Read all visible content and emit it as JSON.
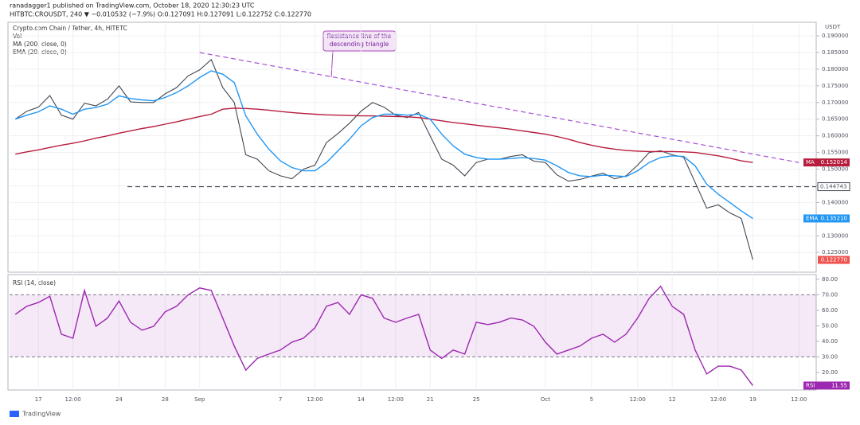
{
  "header": {
    "publisher": "ranadagger1 published on TradingView.com, October 18, 2020 12:30:23 UTC",
    "quote": "HITBTC:CROUSDT, 240 ▼ −0.010532 (−7.9%) O:0.127091 H:0.127091 L:0.122752 C:0.122770"
  },
  "footer": "TradingView",
  "chart_data": [
    {
      "type": "line",
      "y_label": "USDT",
      "volume_label": "Vol",
      "annotation": [
        "Resistance line of the",
        "descending triangle"
      ],
      "categories": [
        null,
        null,
        "17",
        null,
        null,
        "12:00",
        null,
        null,
        null,
        "24",
        null,
        null,
        null,
        "28",
        null,
        null,
        "Sep",
        null,
        null,
        null,
        null,
        null,
        null,
        "7",
        null,
        null,
        "12:00",
        null,
        null,
        null,
        "14",
        null,
        null,
        "12:00",
        null,
        null,
        "21",
        null,
        null,
        null,
        "25",
        null,
        null,
        null,
        null,
        null,
        "Oct",
        null,
        null,
        null,
        "5",
        null,
        null,
        null,
        "12:00",
        null,
        null,
        "12",
        null,
        null,
        null,
        "12:00",
        null,
        null,
        "19",
        null,
        null,
        null,
        "12:00",
        null
      ],
      "ylim": [
        0.1198,
        0.1936
      ],
      "yticks": [
        {
          "value": 0.125,
          "label": "0.125000"
        },
        {
          "value": 0.13,
          "label": "0.130000"
        },
        {
          "value": 0.135,
          "label": "0.135000"
        },
        {
          "value": 0.14,
          "label": "0.140000"
        },
        {
          "value": 0.145,
          "label": "0.145000"
        },
        {
          "value": 0.15,
          "label": "0.150000"
        },
        {
          "value": 0.155,
          "label": "0.155000"
        },
        {
          "value": 0.16,
          "label": "0.160000"
        },
        {
          "value": 0.165,
          "label": "0.165000"
        },
        {
          "value": 0.17,
          "label": "0.170000"
        },
        {
          "value": 0.175,
          "label": "0.175000"
        },
        {
          "value": 0.18,
          "label": "0.180000"
        },
        {
          "value": 0.185,
          "label": "0.185000"
        },
        {
          "value": 0.19,
          "label": "0.190000"
        }
      ],
      "grid": true,
      "support": {
        "value": 0.144743,
        "color": "#434651"
      },
      "trendline": {
        "start": [
          16,
          0.185
        ],
        "end": [
          68,
          0.152
        ],
        "color": "#a64dd6"
      },
      "series": [
        {
          "name": "Crypto.com Chain / Tether, 4h, HITBTC",
          "color": "#434651",
          "values": [
            0.165,
            0.1674,
            0.1686,
            0.1721,
            0.1662,
            0.165,
            0.1698,
            0.169,
            0.171,
            0.175,
            0.1702,
            0.17,
            0.17,
            0.1726,
            0.1745,
            0.178,
            0.1798,
            0.1829,
            0.1745,
            0.17,
            0.1543,
            0.153,
            0.1495,
            0.148,
            0.1471,
            0.15,
            0.1512,
            0.158,
            0.1607,
            0.1638,
            0.1674,
            0.17,
            0.1686,
            0.1662,
            0.1655,
            0.167,
            0.16,
            0.153,
            0.1512,
            0.148,
            0.152,
            0.153,
            0.153,
            0.1538,
            0.1543,
            0.1524,
            0.152,
            0.1483,
            0.1464,
            0.1469,
            0.1479,
            0.1488,
            0.1471,
            0.148,
            0.1512,
            0.155,
            0.1555,
            0.1543,
            0.1536,
            0.146,
            0.1383,
            0.1393,
            0.1369,
            0.1352,
            0.1228,
            null,
            null,
            null,
            null,
            null
          ],
          "last": {
            "value": 0.12277,
            "label": "0.122770"
          },
          "badge_color": "#ef5350"
        },
        {
          "name": "MA (200, close, 0)",
          "color": "#b71c3c",
          "badge": "MA",
          "values": [
            0.1545,
            0.1552,
            0.1558,
            0.1565,
            0.1572,
            0.1578,
            0.1585,
            0.1593,
            0.16,
            0.1608,
            0.1615,
            0.1622,
            0.1628,
            0.1635,
            0.1642,
            0.165,
            0.1658,
            0.1665,
            0.168,
            0.1683,
            0.1682,
            0.168,
            0.1677,
            0.1673,
            0.167,
            0.1667,
            0.1665,
            0.1663,
            0.1662,
            0.1661,
            0.166,
            0.166,
            0.1659,
            0.1658,
            0.1657,
            0.1655,
            0.165,
            0.1645,
            0.164,
            0.1636,
            0.1632,
            0.1628,
            0.1624,
            0.162,
            0.1615,
            0.161,
            0.1605,
            0.1598,
            0.159,
            0.158,
            0.1572,
            0.1565,
            0.156,
            0.1556,
            0.1554,
            0.1553,
            0.1553,
            0.1553,
            0.1552,
            0.155,
            0.1545,
            0.154,
            0.1533,
            0.1525,
            0.152,
            null,
            null,
            null,
            null,
            null
          ],
          "last": 0.152014
        },
        {
          "name": "EMA (20, close, 0)",
          "color": "#2196f3",
          "badge": "EMA",
          "values": [
            0.165,
            0.1662,
            0.1672,
            0.169,
            0.168,
            0.1665,
            0.168,
            0.1685,
            0.1695,
            0.172,
            0.1712,
            0.1708,
            0.1705,
            0.1715,
            0.173,
            0.175,
            0.1775,
            0.1795,
            0.1785,
            0.176,
            0.166,
            0.1605,
            0.156,
            0.1525,
            0.1505,
            0.1495,
            0.1495,
            0.152,
            0.1555,
            0.159,
            0.163,
            0.1655,
            0.1665,
            0.1665,
            0.1662,
            0.1665,
            0.165,
            0.1605,
            0.157,
            0.1545,
            0.1535,
            0.153,
            0.153,
            0.1532,
            0.1535,
            0.1532,
            0.1527,
            0.151,
            0.149,
            0.148,
            0.1478,
            0.1482,
            0.148,
            0.1478,
            0.1495,
            0.152,
            0.1535,
            0.154,
            0.1538,
            0.151,
            0.1455,
            0.1425,
            0.14,
            0.1375,
            0.1352,
            null,
            null,
            null,
            null,
            null
          ],
          "last": {
            "value": 0.13521,
            "label": "0.135210"
          }
        }
      ]
    },
    {
      "type": "line",
      "ylim": [
        8.7,
        83
      ],
      "yticks": [
        {
          "value": 20,
          "label": "20.00"
        },
        {
          "value": 30,
          "label": "30.00"
        },
        {
          "value": 40,
          "label": "40.00"
        },
        {
          "value": 50,
          "label": "50.00"
        },
        {
          "value": 60,
          "label": "60.00"
        },
        {
          "value": 70,
          "label": "70.00"
        },
        {
          "value": 80,
          "label": "80.00"
        }
      ],
      "band": [
        30,
        70
      ],
      "band_color": "#9c27b0",
      "series": [
        {
          "name": "RSI (14, close)",
          "color": "#9c27b0",
          "badge": "RSI",
          "values": [
            57.4,
            62.6,
            65,
            69,
            44.6,
            42,
            72.8,
            49.7,
            55,
            66,
            52.3,
            47.2,
            49.7,
            59,
            62.6,
            70,
            74.4,
            72.8,
            55,
            37,
            21.5,
            29,
            31.8,
            34.4,
            39.5,
            42,
            48.7,
            62.6,
            65,
            57.4,
            70,
            67.7,
            55,
            52.3,
            55,
            57.4,
            34.4,
            29,
            34.4,
            31.8,
            52.3,
            50.8,
            52.3,
            55,
            53.8,
            49.7,
            39.5,
            31.8,
            34.4,
            37,
            42,
            44.6,
            39.5,
            44.6,
            55,
            67.7,
            75.4,
            62.6,
            57.4,
            34.4,
            19,
            24,
            24,
            21.5,
            11.55,
            null,
            null,
            null,
            null,
            null
          ],
          "last": 11.55
        }
      ]
    }
  ]
}
